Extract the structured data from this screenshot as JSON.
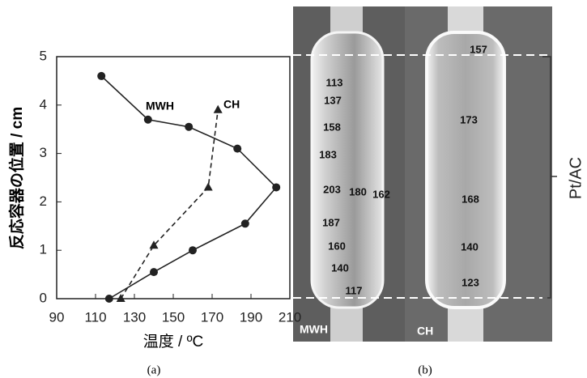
{
  "chart_data": {
    "type": "line",
    "xlabel": "温度 / ºC",
    "ylabel": "反応容器の位置 / cm",
    "caption": "(a)",
    "xlim": [
      90,
      210
    ],
    "xticks": [
      90,
      110,
      130,
      150,
      170,
      190,
      210
    ],
    "ylim": [
      0,
      5
    ],
    "yticks": [
      0,
      1,
      2,
      3,
      4,
      5
    ],
    "series": [
      {
        "name": "MWH",
        "color": "#222222",
        "marker": "circle",
        "dashed": false,
        "x": [
          117,
          140,
          160,
          187,
          203,
          183,
          158,
          137,
          113
        ],
        "values": [
          0,
          0.55,
          1,
          1.55,
          2.3,
          3.1,
          3.55,
          3.7,
          4.6
        ]
      },
      {
        "name": "CH",
        "color": "#222222",
        "marker": "triangle",
        "dashed": true,
        "x": [
          123,
          140,
          168,
          173
        ],
        "values": [
          0,
          1.1,
          2.3,
          3.9
        ]
      }
    ]
  },
  "image": {
    "caption": "(b)",
    "left_label": "MWH",
    "right_label": "CH",
    "zone_label": "Pt/AC",
    "temps": [
      "157",
      "113",
      "137",
      "158",
      "183",
      "203",
      "180",
      "162",
      "173",
      "168",
      "187",
      "160",
      "140",
      "140",
      "123",
      "117"
    ]
  }
}
